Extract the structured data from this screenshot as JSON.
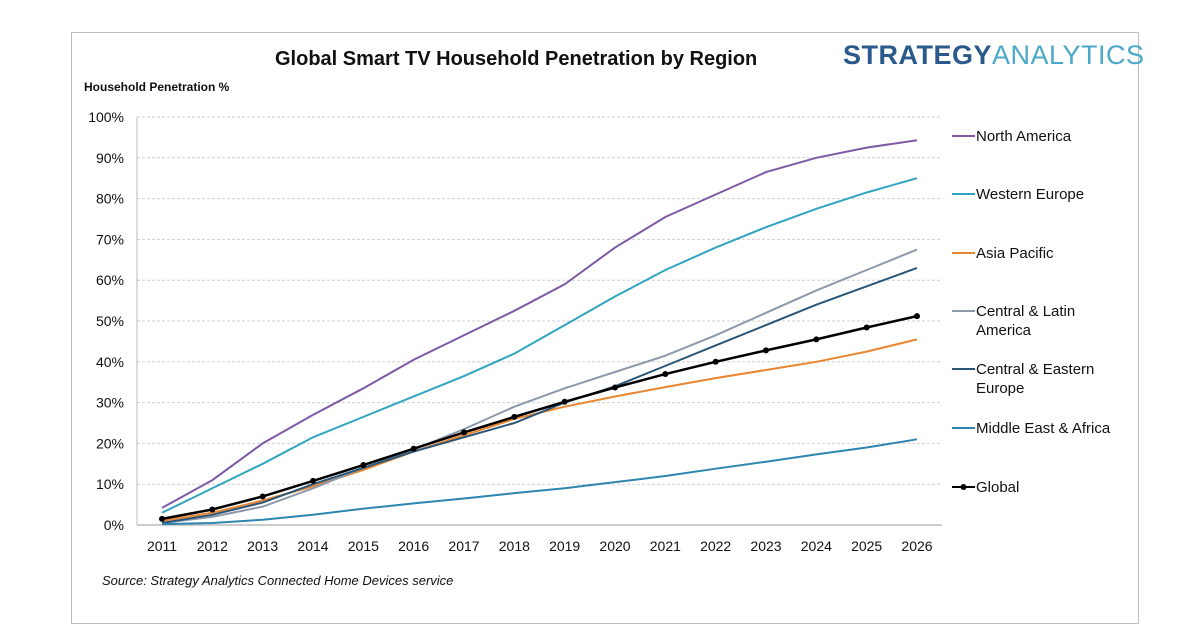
{
  "chart_data": {
    "type": "line",
    "title": "Global Smart TV Household Penetration by Region",
    "ylabel": "Household Penetration %",
    "xlabel": "",
    "source": "Source: Strategy Analytics Connected Home Devices service",
    "logo": {
      "part1": "STRATEGY",
      "part2": "ANALYTICS"
    },
    "ylim": [
      0,
      100
    ],
    "yticks": [
      "0%",
      "10%",
      "20%",
      "30%",
      "40%",
      "50%",
      "60%",
      "70%",
      "80%",
      "90%",
      "100%"
    ],
    "grid": true,
    "legend_position": "right",
    "x": [
      2011,
      2012,
      2013,
      2014,
      2015,
      2016,
      2017,
      2018,
      2019,
      2020,
      2021,
      2022,
      2023,
      2024,
      2025,
      2026
    ],
    "series": [
      {
        "name": "North America",
        "legend_lines": [
          "North America"
        ],
        "color": "#7d5aa6",
        "markers": false,
        "values": [
          4.2,
          11,
          20,
          27,
          33.5,
          40.5,
          46.5,
          52.5,
          59,
          68,
          75.5,
          81,
          86.5,
          90,
          92.5,
          94.3
        ]
      },
      {
        "name": "Western Europe",
        "legend_lines": [
          "Western Europe"
        ],
        "color": "#31a5c0",
        "markers": false,
        "values": [
          3,
          9,
          15,
          21.5,
          26.5,
          31.5,
          36.5,
          42,
          49,
          56,
          62.5,
          68,
          73,
          77.5,
          81.5,
          85
        ]
      },
      {
        "name": "Asia Pacific",
        "legend_lines": [
          "Asia Pacific"
        ],
        "color": "#e8852e",
        "markers": false,
        "values": [
          1,
          3,
          6,
          9.5,
          13.5,
          18,
          22,
          26,
          29,
          31.5,
          33.8,
          36,
          38,
          40,
          42.5,
          45.5
        ]
      },
      {
        "name": "Central & Latin America",
        "legend_lines": [
          "Central & Latin",
          "America"
        ],
        "color": "#8d98a8",
        "markers": false,
        "values": [
          0.5,
          2,
          4.5,
          9,
          14,
          18.5,
          23.5,
          29,
          33.5,
          37.5,
          41.5,
          46.5,
          52,
          57.5,
          62.5,
          67.5
        ]
      },
      {
        "name": "Central & Eastern Europe",
        "legend_lines": [
          "Central & Eastern",
          "Europe"
        ],
        "color": "#2a5678",
        "markers": false,
        "values": [
          0.5,
          2.5,
          5.5,
          10,
          14,
          18,
          21.5,
          25,
          30,
          34,
          39,
          44,
          49,
          54,
          58.5,
          63
        ]
      },
      {
        "name": "Middle East & Africa",
        "legend_lines": [
          "Middle East & Africa"
        ],
        "color": "#2e86b0",
        "markers": false,
        "values": [
          0.2,
          0.5,
          1.3,
          2.5,
          4,
          5.3,
          6.5,
          7.8,
          9,
          10.5,
          12,
          13.8,
          15.5,
          17.3,
          19,
          21
        ]
      },
      {
        "name": "Global",
        "legend_lines": [
          "Global"
        ],
        "color": "#000000",
        "markers": true,
        "values": [
          1.5,
          3.8,
          7,
          10.8,
          14.7,
          18.7,
          22.7,
          26.5,
          30.2,
          33.7,
          37,
          40,
          42.8,
          45.5,
          48.4,
          51.2
        ]
      }
    ]
  }
}
